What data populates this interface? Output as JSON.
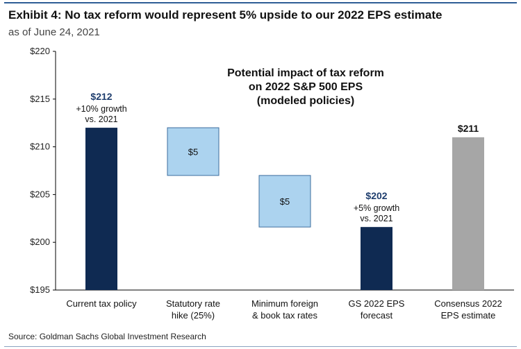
{
  "title": "Exhibit 4: No tax reform would represent 5% upside to our 2022 EPS estimate",
  "subtitle": "as of June 24, 2021",
  "source": "Source: Goldman Sachs Global Investment Research",
  "colors": {
    "navy": "#0f2a52",
    "light_blue": "#acd3ef",
    "light_blue_border": "#3d6d9e",
    "gray": "#a6a6a6",
    "axis": "#000000"
  },
  "chart_data": {
    "type": "waterfall",
    "title": "Potential impact of tax reform on 2022 S&P 500 EPS (modeled policies)",
    "title_lines": [
      "Potential impact of tax reform",
      "on 2022 S&P 500 EPS",
      "(modeled policies)"
    ],
    "ylim": [
      195,
      220
    ],
    "yticks": [
      195,
      200,
      205,
      210,
      215,
      220
    ],
    "ytick_labels": [
      "$195",
      "$200",
      "$205",
      "$210",
      "$215",
      "$220"
    ],
    "bars": [
      {
        "category_lines": [
          "Current tax policy"
        ],
        "start": 195,
        "end": 212,
        "color": "navy",
        "label": "$212",
        "annotation": [
          "+10% growth",
          "vs. 2021"
        ]
      },
      {
        "category_lines": [
          "Statutory rate",
          "hike (25%)"
        ],
        "start": 212,
        "end": 207,
        "color": "light_blue",
        "label": "$5",
        "annotation": []
      },
      {
        "category_lines": [
          "Minimum foreign",
          "& book tax rates"
        ],
        "start": 207,
        "end": 201.6,
        "color": "light_blue",
        "label": "$5",
        "annotation": []
      },
      {
        "category_lines": [
          "GS 2022 EPS",
          "forecast"
        ],
        "start": 195,
        "end": 201.6,
        "color": "navy",
        "label": "$202",
        "annotation": [
          "+5% growth",
          "vs. 2021"
        ]
      },
      {
        "category_lines": [
          "Consensus 2022",
          "EPS estimate"
        ],
        "start": 195,
        "end": 211,
        "color": "gray",
        "label": "$211",
        "annotation": []
      }
    ]
  }
}
